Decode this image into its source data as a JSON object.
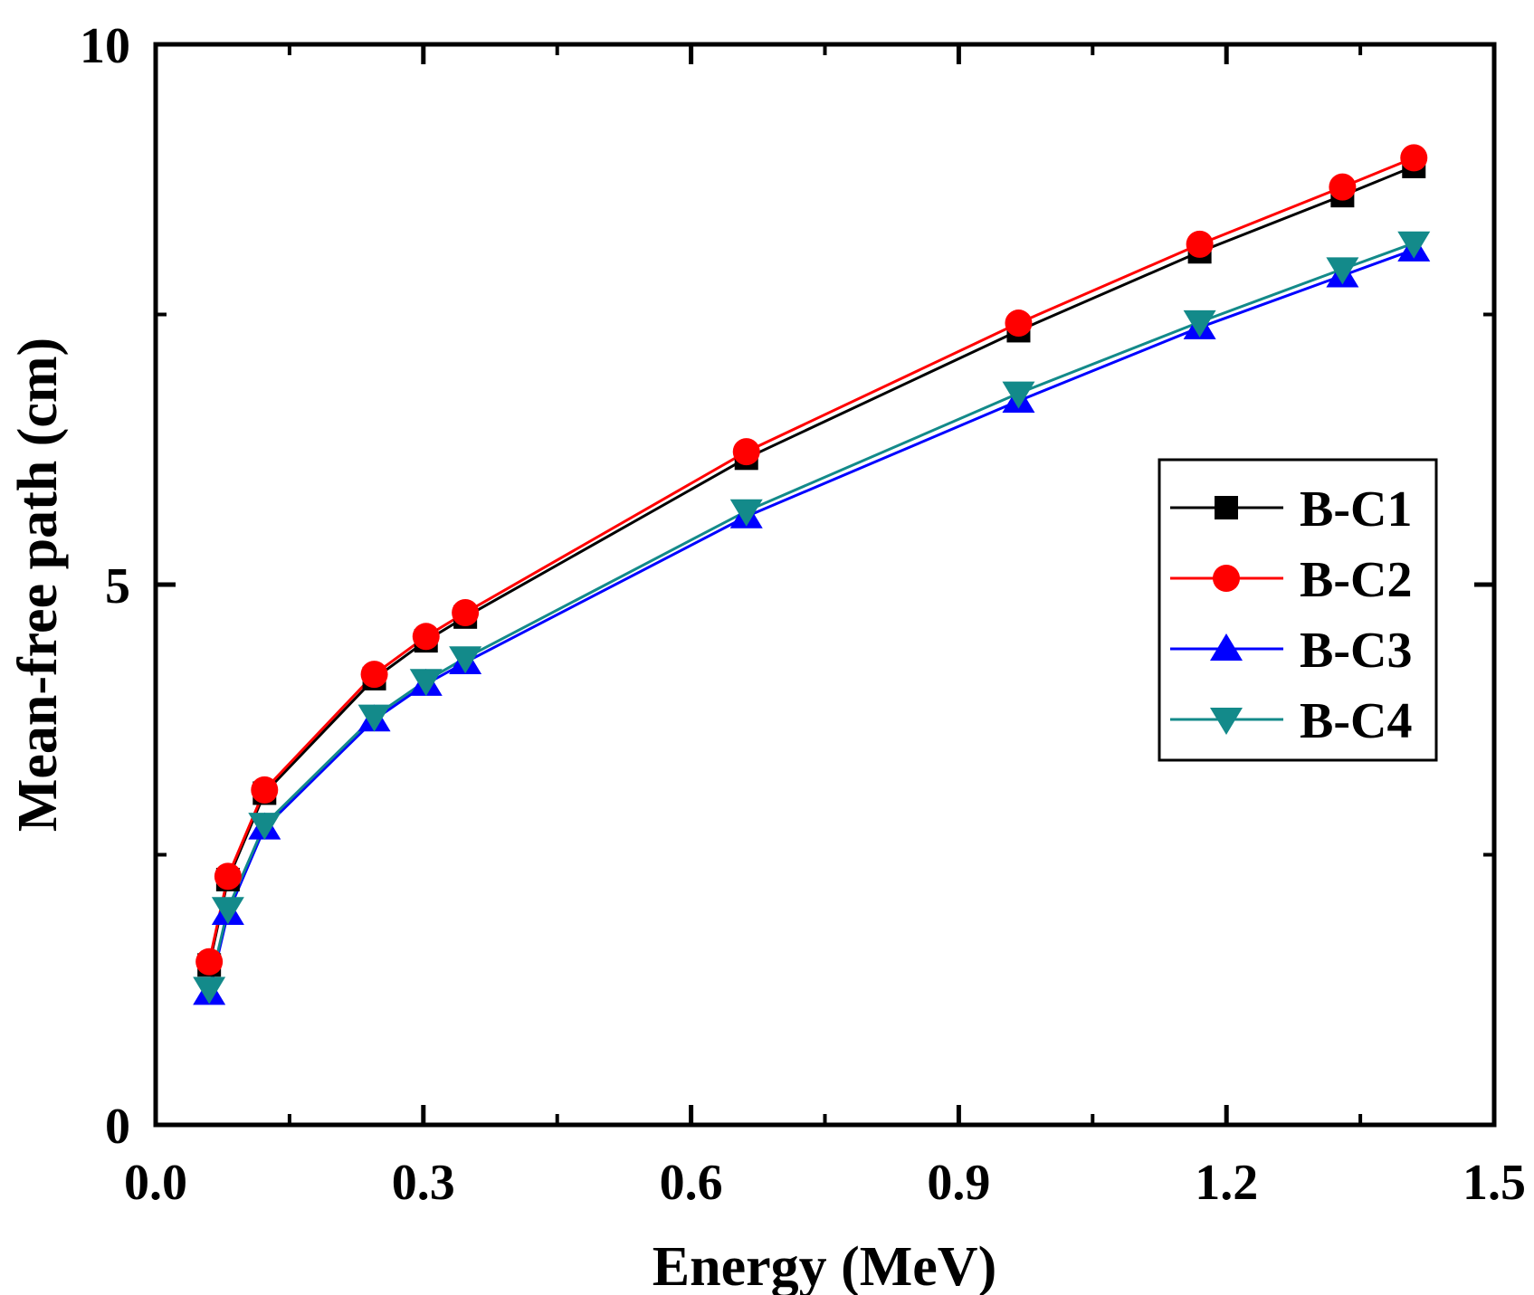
{
  "chart_data": {
    "type": "line",
    "title": "",
    "xlabel": "Energy (MeV)",
    "ylabel": "Mean-free path (cm)",
    "xlim": [
      0.0,
      1.5
    ],
    "ylim": [
      0,
      10
    ],
    "xticks": [
      0.0,
      0.3,
      0.6,
      0.9,
      1.2,
      1.5
    ],
    "xtick_labels": [
      "0.0",
      "0.3",
      "0.6",
      "0.9",
      "1.2",
      "1.5"
    ],
    "yticks": [
      0,
      5,
      10
    ],
    "ytick_labels": [
      "0",
      "5",
      "10"
    ],
    "grid": false,
    "legend_position": "right",
    "x": [
      0.06,
      0.081,
      0.122,
      0.245,
      0.303,
      0.347,
      0.662,
      0.967,
      1.17,
      1.33,
      1.41
    ],
    "series": [
      {
        "name": "B-C1",
        "color": "#000000",
        "marker": "square",
        "values": [
          1.48,
          2.27,
          3.07,
          4.13,
          4.48,
          4.7,
          6.17,
          7.35,
          8.08,
          8.6,
          8.87
        ]
      },
      {
        "name": "B-C2",
        "color": "#ff0000",
        "marker": "circle",
        "values": [
          1.51,
          2.3,
          3.1,
          4.17,
          4.52,
          4.74,
          6.23,
          7.42,
          8.15,
          8.68,
          8.95
        ]
      },
      {
        "name": "B-C3",
        "color": "#0000ff",
        "marker": "triangle-up",
        "values": [
          1.22,
          1.96,
          2.75,
          3.75,
          4.08,
          4.28,
          5.63,
          6.7,
          7.38,
          7.86,
          8.1
        ]
      },
      {
        "name": "B-C4",
        "color": "#138a8a",
        "marker": "triangle-down",
        "values": [
          1.26,
          2.0,
          2.78,
          3.78,
          4.11,
          4.32,
          5.68,
          6.77,
          7.43,
          7.92,
          8.16
        ]
      }
    ]
  }
}
